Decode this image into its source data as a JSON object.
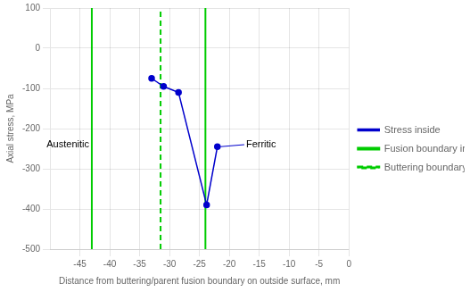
{
  "chart_data": {
    "type": "line",
    "xlabel": "Distance from buttering/parent fusion boundary on outside surface, mm",
    "ylabel": "Axial stress, MPa",
    "xlim": [
      -50,
      0
    ],
    "ylim": [
      -500,
      100
    ],
    "xticks": [
      -45,
      -40,
      -35,
      -30,
      -25,
      -20,
      -15,
      -10,
      -5,
      0
    ],
    "yticks": [
      -500,
      -400,
      -300,
      -200,
      -100,
      0,
      100
    ],
    "grid": true,
    "legend": "right",
    "series": [
      {
        "name": "Stress inside",
        "type": "line",
        "color": "#0000cc",
        "marker": "circle",
        "line_style": "solid",
        "x": [
          -33,
          -31,
          -28.5,
          -23.8,
          -22
        ],
        "values": [
          -75,
          -95,
          -110,
          -390,
          -245
        ]
      },
      {
        "name": "Fusion boundary inside",
        "type": "vline",
        "color": "#00cc00",
        "line_style": "solid",
        "values": [
          -43,
          -24
        ]
      },
      {
        "name": "Buttering boundary inside",
        "type": "vline",
        "color": "#00cc00",
        "line_style": "dashed",
        "values": [
          -31.5
        ]
      }
    ],
    "annotations": [
      {
        "text": "Austenitic",
        "x": -47,
        "y": -240
      },
      {
        "text": "Ferritic",
        "x": -17.5,
        "y": -240,
        "arrow_x": -21.5,
        "arrow_y": -245
      }
    ]
  }
}
